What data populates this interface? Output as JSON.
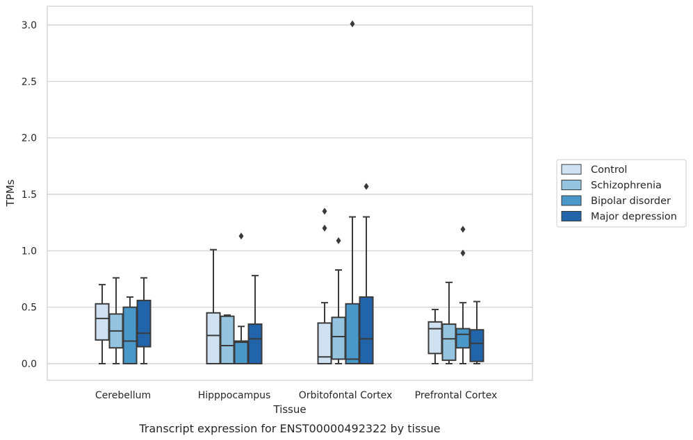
{
  "caption": "Transcript expression for ENST00000492322 by tissue",
  "chart_data": {
    "type": "boxplot",
    "xlabel": "Tissue",
    "ylabel": "TPMs",
    "ylim": [
      -0.145,
      3.16
    ],
    "yticks": [
      0.0,
      0.5,
      1.0,
      1.5,
      2.0,
      2.5,
      3.0
    ],
    "ytick_labels": [
      "0.0",
      "0.5",
      "1.0",
      "1.5",
      "2.0",
      "2.5",
      "3.0"
    ],
    "grid": "horizontal",
    "legend_position": "right",
    "categories": [
      "Cerebellum",
      "Hipppocampus",
      "Orbitofontal Cortex",
      "Prefrontal Cortex"
    ],
    "series": [
      {
        "name": "Control",
        "color": "#d0e1f2",
        "boxes": [
          {
            "whisker_low": 0.0,
            "q1": 0.21,
            "median": 0.4,
            "q3": 0.53,
            "whisker_high": 0.7,
            "outliers": []
          },
          {
            "whisker_low": 0.0,
            "q1": 0.0,
            "median": 0.25,
            "q3": 0.45,
            "whisker_high": 1.01,
            "outliers": []
          },
          {
            "whisker_low": 0.0,
            "q1": 0.0,
            "median": 0.06,
            "q3": 0.36,
            "whisker_high": 0.54,
            "outliers": [
              1.2,
              1.35
            ]
          },
          {
            "whisker_low": 0.0,
            "q1": 0.09,
            "median": 0.31,
            "q3": 0.37,
            "whisker_high": 0.48,
            "outliers": []
          }
        ]
      },
      {
        "name": "Schizophrenia",
        "color": "#94c4df",
        "boxes": [
          {
            "whisker_low": 0.0,
            "q1": 0.14,
            "median": 0.29,
            "q3": 0.44,
            "whisker_high": 0.76,
            "outliers": []
          },
          {
            "whisker_low": 0.0,
            "q1": 0.0,
            "median": 0.16,
            "q3": 0.42,
            "whisker_high": 0.43,
            "outliers": []
          },
          {
            "whisker_low": 0.0,
            "q1": 0.04,
            "median": 0.24,
            "q3": 0.41,
            "whisker_high": 0.83,
            "outliers": [
              1.09
            ]
          },
          {
            "whisker_low": 0.0,
            "q1": 0.03,
            "median": 0.22,
            "q3": 0.35,
            "whisker_high": 0.72,
            "outliers": []
          }
        ]
      },
      {
        "name": "Bipolar disorder",
        "color": "#4a98c9",
        "boxes": [
          {
            "whisker_low": 0.0,
            "q1": 0.0,
            "median": 0.2,
            "q3": 0.5,
            "whisker_high": 0.59,
            "outliers": []
          },
          {
            "whisker_low": 0.0,
            "q1": 0.0,
            "median": 0.19,
            "q3": 0.2,
            "whisker_high": 0.33,
            "outliers": [
              1.13
            ]
          },
          {
            "whisker_low": 0.0,
            "q1": 0.0,
            "median": 0.04,
            "q3": 0.53,
            "whisker_high": 1.3,
            "outliers": [
              3.01
            ]
          },
          {
            "whisker_low": 0.0,
            "q1": 0.14,
            "median": 0.26,
            "q3": 0.31,
            "whisker_high": 0.54,
            "outliers": [
              0.98,
              1.19
            ]
          }
        ]
      },
      {
        "name": "Major depression",
        "color": "#2264aa",
        "boxes": [
          {
            "whisker_low": 0.0,
            "q1": 0.15,
            "median": 0.27,
            "q3": 0.56,
            "whisker_high": 0.76,
            "outliers": []
          },
          {
            "whisker_low": 0.0,
            "q1": 0.0,
            "median": 0.22,
            "q3": 0.35,
            "whisker_high": 0.78,
            "outliers": []
          },
          {
            "whisker_low": 0.0,
            "q1": 0.0,
            "median": 0.22,
            "q3": 0.59,
            "whisker_high": 1.3,
            "outliers": [
              1.57
            ]
          },
          {
            "whisker_low": 0.0,
            "q1": 0.02,
            "median": 0.18,
            "q3": 0.3,
            "whisker_high": 0.55,
            "outliers": []
          }
        ]
      }
    ]
  }
}
